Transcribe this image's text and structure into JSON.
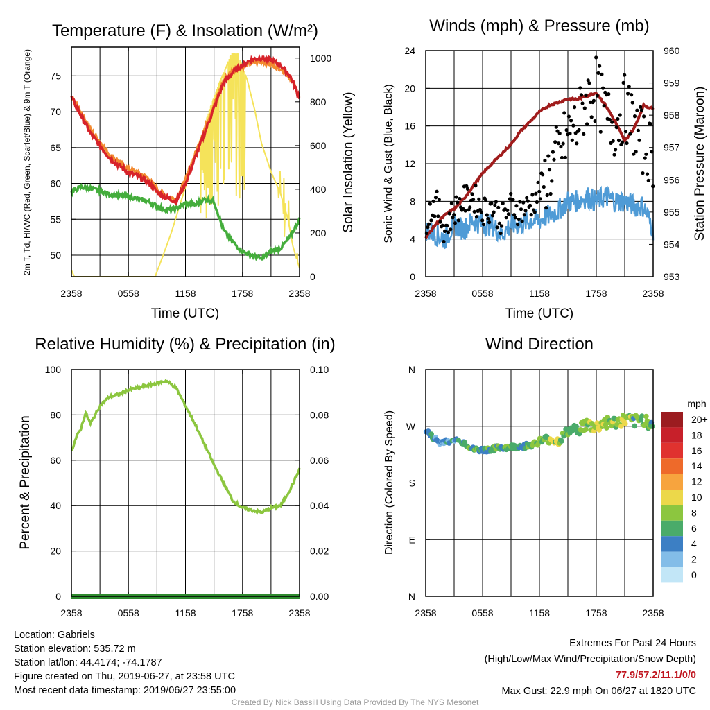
{
  "footer": {
    "location": "Location: Gabriels",
    "elevation": "Station elevation: 535.72 m",
    "latlon": "Station lat/lon: 44.4174; -74.1787",
    "created": "Figure created on Thu, 2019-06-27, at 23:58 UTC",
    "recent": "Most recent data timestamp: 2019/06/27 23:55:00",
    "extremes_title": "Extremes For Past 24 Hours",
    "extremes_subtitle": "(High/Low/Max Wind/Precipitation/Snow Depth)",
    "extremes_values": "77.9/57.2/11.1/0/0",
    "max_gust": "Max Gust: 22.9 mph On 06/27 at 1820 UTC",
    "credit": "Created By Nick Bassill Using Data Provided By The NYS Mesonet"
  },
  "colors": {
    "temp_2m": "#d7232a",
    "temp_9m": "#f28a30",
    "dewpoint": "#44ad3c",
    "insolation": "#f5e35a",
    "rh": "#8cc63f",
    "precip": "#2e8b2e",
    "wind": "#4f9bd6",
    "gust": "#000000",
    "pressure": "#a01c1c"
  },
  "chart_data": [
    {
      "type": "line",
      "title": "Temperature (F) & Insolation (W/m²)",
      "xlabel": "Time (UTC)",
      "ylabel": "2m T, Td, HI/WC (Red, Green, Scarlet/Blue) & 9m T (Orange)",
      "y2label": "Solar Insolation (Yellow)",
      "xticks": [
        "2358",
        "0558",
        "1158",
        "1758",
        "2358"
      ],
      "xlim_hours": [
        0,
        24
      ],
      "ylim": [
        47,
        79
      ],
      "yticks": [
        50,
        55,
        60,
        65,
        70,
        75
      ],
      "y2lim": [
        0,
        1050
      ],
      "y2ticks": [
        0,
        200,
        400,
        600,
        800,
        1000
      ],
      "series": [
        {
          "name": "2m T",
          "x": [
            0,
            1,
            2,
            3,
            4,
            5,
            6,
            7,
            8,
            9,
            10,
            11,
            12,
            13,
            14,
            15,
            16,
            17,
            18,
            19,
            20,
            21,
            22,
            23,
            24
          ],
          "values": [
            72,
            69.5,
            67,
            65.3,
            63.6,
            62.5,
            61.5,
            61,
            60.3,
            58.8,
            58,
            57.5,
            60,
            63.5,
            67,
            70.5,
            74,
            75.5,
            76.5,
            77.3,
            77.5,
            77.2,
            76.5,
            75,
            72
          ]
        },
        {
          "name": "9m T",
          "x": [
            0,
            1,
            2,
            3,
            4,
            5,
            6,
            7,
            8,
            9,
            10,
            11,
            12,
            13,
            14,
            15,
            16,
            17,
            18,
            19,
            20,
            21,
            22,
            23,
            24
          ],
          "values": [
            72,
            70,
            67.5,
            65.8,
            64,
            63,
            62,
            61.5,
            60.8,
            59.2,
            58.2,
            57.8,
            60.5,
            64,
            67.5,
            71,
            74.3,
            75.8,
            76.3,
            76.8,
            77,
            76.6,
            76,
            74.8,
            72
          ]
        },
        {
          "name": "Td",
          "x": [
            0,
            1,
            2,
            3,
            4,
            5,
            6,
            7,
            8,
            9,
            10,
            11,
            12,
            13,
            14,
            15,
            16,
            17,
            18,
            19,
            20,
            21,
            22,
            23,
            24
          ],
          "values": [
            58.8,
            59.5,
            59.3,
            59,
            58.5,
            58.3,
            58.2,
            57.8,
            57.5,
            56.8,
            56.3,
            56.5,
            57.2,
            57,
            57.8,
            57.5,
            53.5,
            51.8,
            50.5,
            50,
            49.5,
            50.5,
            51,
            52.5,
            55
          ]
        },
        {
          "name": "Insolation",
          "x": [
            0,
            0.3,
            1,
            2,
            8.8,
            9.5,
            10.5,
            11.5,
            12.5,
            13.5,
            14.5,
            15.5,
            16.3,
            16.8,
            17.5,
            18.5,
            19.3,
            20,
            21,
            22,
            22.8,
            23.3,
            23.7,
            24
          ],
          "values": [
            30,
            0,
            0,
            0,
            0,
            80,
            200,
            340,
            480,
            620,
            760,
            880,
            960,
            1020,
            1020,
            900,
            760,
            610,
            480,
            380,
            260,
            140,
            80,
            40
          ]
        }
      ]
    },
    {
      "type": "line",
      "title": "Winds (mph) & Pressure (mb)",
      "xlabel": "Time (UTC)",
      "ylabel": "Sonic Wind & Gust (Blue, Black)",
      "y2label": "Station Pressure (Maroon)",
      "xticks": [
        "2358",
        "0558",
        "1158",
        "1758",
        "2358"
      ],
      "xlim_hours": [
        0,
        24
      ],
      "ylim": [
        0,
        24
      ],
      "yticks": [
        0,
        4,
        8,
        12,
        16,
        20,
        24
      ],
      "y2lim": [
        953,
        960
      ],
      "y2ticks": [
        953,
        954,
        955,
        956,
        957,
        958,
        959,
        960
      ],
      "series": [
        {
          "name": "Sonic Wind",
          "x": [
            0,
            1,
            2,
            3,
            4,
            5,
            6,
            7,
            8,
            9,
            10,
            11,
            12,
            13,
            14,
            15,
            16,
            17,
            18,
            19,
            20,
            21,
            22,
            23,
            24
          ],
          "values": [
            5,
            4.5,
            4,
            5.5,
            5,
            6,
            5.5,
            5.5,
            4.5,
            5.5,
            5.5,
            6,
            6,
            6.5,
            7,
            8,
            8,
            8.5,
            8,
            8.5,
            8,
            8,
            7.5,
            7.5,
            5
          ]
        },
        {
          "name": "Gust",
          "x": [
            0,
            1,
            2,
            3,
            4,
            5,
            6,
            7,
            8,
            9,
            10,
            11,
            12,
            13,
            14,
            15,
            16,
            17,
            18,
            19,
            20,
            21,
            22,
            23,
            24
          ],
          "values": [
            6,
            8,
            5,
            7,
            8,
            8.5,
            7,
            7.5,
            6,
            7.5,
            7,
            7.5,
            9,
            11,
            13,
            15,
            16,
            19,
            20,
            17,
            16,
            18,
            16,
            14,
            13
          ]
        },
        {
          "name": "Pressure",
          "x": [
            0,
            1,
            2,
            3,
            4,
            5,
            6,
            7,
            8,
            9,
            10,
            11,
            12,
            13,
            14,
            15,
            16,
            17,
            18,
            19,
            20,
            21,
            22,
            23,
            24
          ],
          "values": [
            954.2,
            954.6,
            954.9,
            955.1,
            955.4,
            955.8,
            956.2,
            956.5,
            956.8,
            957.1,
            957.5,
            957.8,
            958.1,
            958.3,
            958.4,
            958.5,
            958.5,
            958.6,
            958.7,
            958.3,
            957.8,
            957.2,
            957.6,
            958.3,
            958.2
          ]
        }
      ]
    },
    {
      "type": "line",
      "title": "Relative Humidity (%) & Precipitation (in)",
      "ylabel": "Percent & Precipitation",
      "xticks": [
        "2358",
        "0558",
        "1158",
        "1758",
        "2358"
      ],
      "xlim_hours": [
        0,
        24
      ],
      "ylim": [
        0,
        100
      ],
      "yticks": [
        0,
        20,
        40,
        60,
        80,
        100
      ],
      "y2lim": [
        0,
        0.1
      ],
      "y2ticks": [
        "0.00",
        "0.02",
        "0.04",
        "0.06",
        "0.08",
        "0.10"
      ],
      "series": [
        {
          "name": "RH",
          "x": [
            0,
            0.5,
            1,
            1.5,
            2,
            3,
            4,
            5,
            6,
            7,
            8,
            9,
            10,
            11,
            12,
            13,
            14,
            15,
            16,
            17,
            18,
            19,
            20,
            21,
            22,
            23,
            24
          ],
          "values": [
            64,
            70,
            74,
            81,
            76,
            84,
            88,
            89,
            91,
            92,
            93,
            94,
            95,
            92,
            84,
            76,
            67,
            58,
            50,
            42,
            39,
            38,
            37,
            39,
            40,
            47,
            56
          ]
        },
        {
          "name": "Precipitation",
          "x": [
            0,
            24
          ],
          "values": [
            0,
            0
          ]
        }
      ]
    },
    {
      "type": "scatter",
      "title": "Wind Direction",
      "ylabel": "Direction (Colored By Speed)",
      "xticks": [
        "2358",
        "0558",
        "1158",
        "1758",
        "2358"
      ],
      "xlim_hours": [
        0,
        24
      ],
      "yticks": [
        "N",
        "E",
        "S",
        "W",
        "N"
      ],
      "ylim_deg": [
        0,
        360
      ],
      "legend_unit": "mph",
      "legend_labels": [
        "20+",
        "18",
        "16",
        "14",
        "12",
        "10",
        "8",
        "6",
        "4",
        "2",
        "0"
      ],
      "legend_colors": [
        "#9b1c20",
        "#c7202a",
        "#e0322f",
        "#ee6a2a",
        "#f7a43e",
        "#ecd84a",
        "#8cc63f",
        "#4aab6a",
        "#3c7fc4",
        "#83bde8",
        "#c2e6f7"
      ],
      "series": [
        {
          "name": "Direction",
          "x": [
            0,
            0.5,
            1,
            1.5,
            2,
            3,
            4,
            5,
            6,
            7,
            8,
            9,
            10,
            11,
            12,
            13,
            14,
            15,
            16,
            17,
            18,
            19,
            20,
            21,
            22,
            23,
            24
          ],
          "values": [
            265,
            255,
            250,
            243,
            247,
            247,
            245,
            233,
            232,
            234,
            236,
            237,
            238,
            240,
            245,
            250,
            246,
            262,
            266,
            272,
            268,
            277,
            275,
            280,
            277,
            281,
            272
          ],
          "speeds": [
            4,
            4,
            4,
            3,
            4,
            4,
            5,
            6,
            5,
            6,
            6,
            6,
            5,
            6,
            7,
            8,
            9,
            7,
            6,
            8,
            9,
            8,
            7,
            9,
            6,
            7,
            6
          ]
        }
      ]
    }
  ]
}
